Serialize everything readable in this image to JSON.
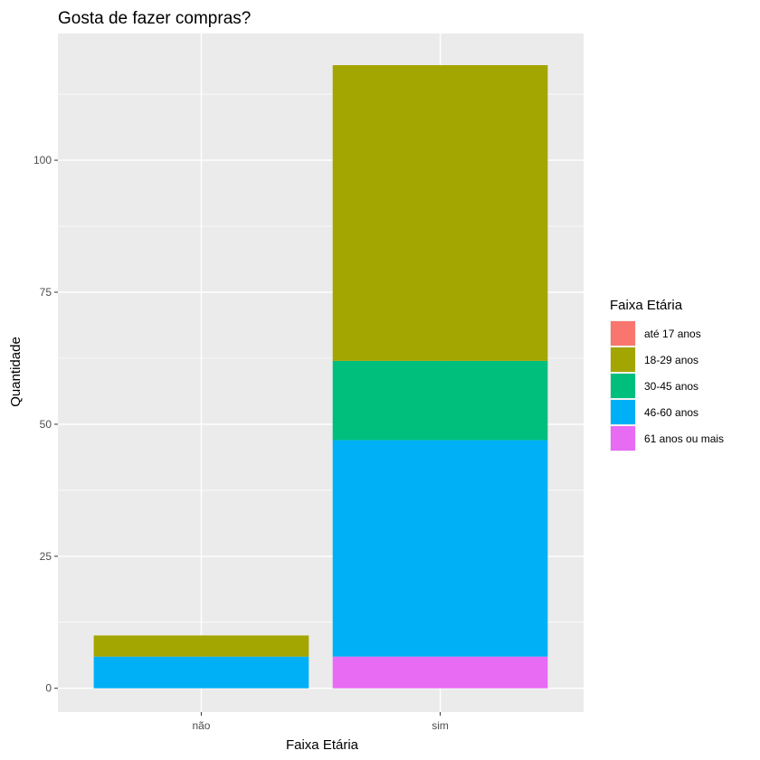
{
  "chart_data": {
    "type": "bar",
    "stacked": true,
    "title": "Gosta de fazer compras?",
    "xlabel": "Faixa Etária",
    "ylabel": "Quantidade",
    "categories": [
      "não",
      "sim"
    ],
    "ylim": [
      -4.5,
      124
    ],
    "yticks": [
      0,
      25,
      50,
      75,
      100
    ],
    "ytick_labels": [
      "0",
      "25",
      "50",
      "75",
      "100"
    ],
    "grid": true,
    "legend": {
      "title": "Faixa Etária",
      "placement": "right"
    },
    "series": [
      {
        "name": "até 17 anos",
        "color": "#F8766D",
        "values": [
          0,
          0
        ]
      },
      {
        "name": "18-29 anos",
        "color": "#A3A500",
        "values": [
          4,
          56
        ]
      },
      {
        "name": "30-45 anos",
        "color": "#00BF7D",
        "values": [
          0,
          15
        ]
      },
      {
        "name": "46-60 anos",
        "color": "#00B0F6",
        "values": [
          6,
          41
        ]
      },
      {
        "name": "61 anos ou mais",
        "color": "#E76BF3",
        "values": [
          0,
          6
        ]
      }
    ]
  }
}
